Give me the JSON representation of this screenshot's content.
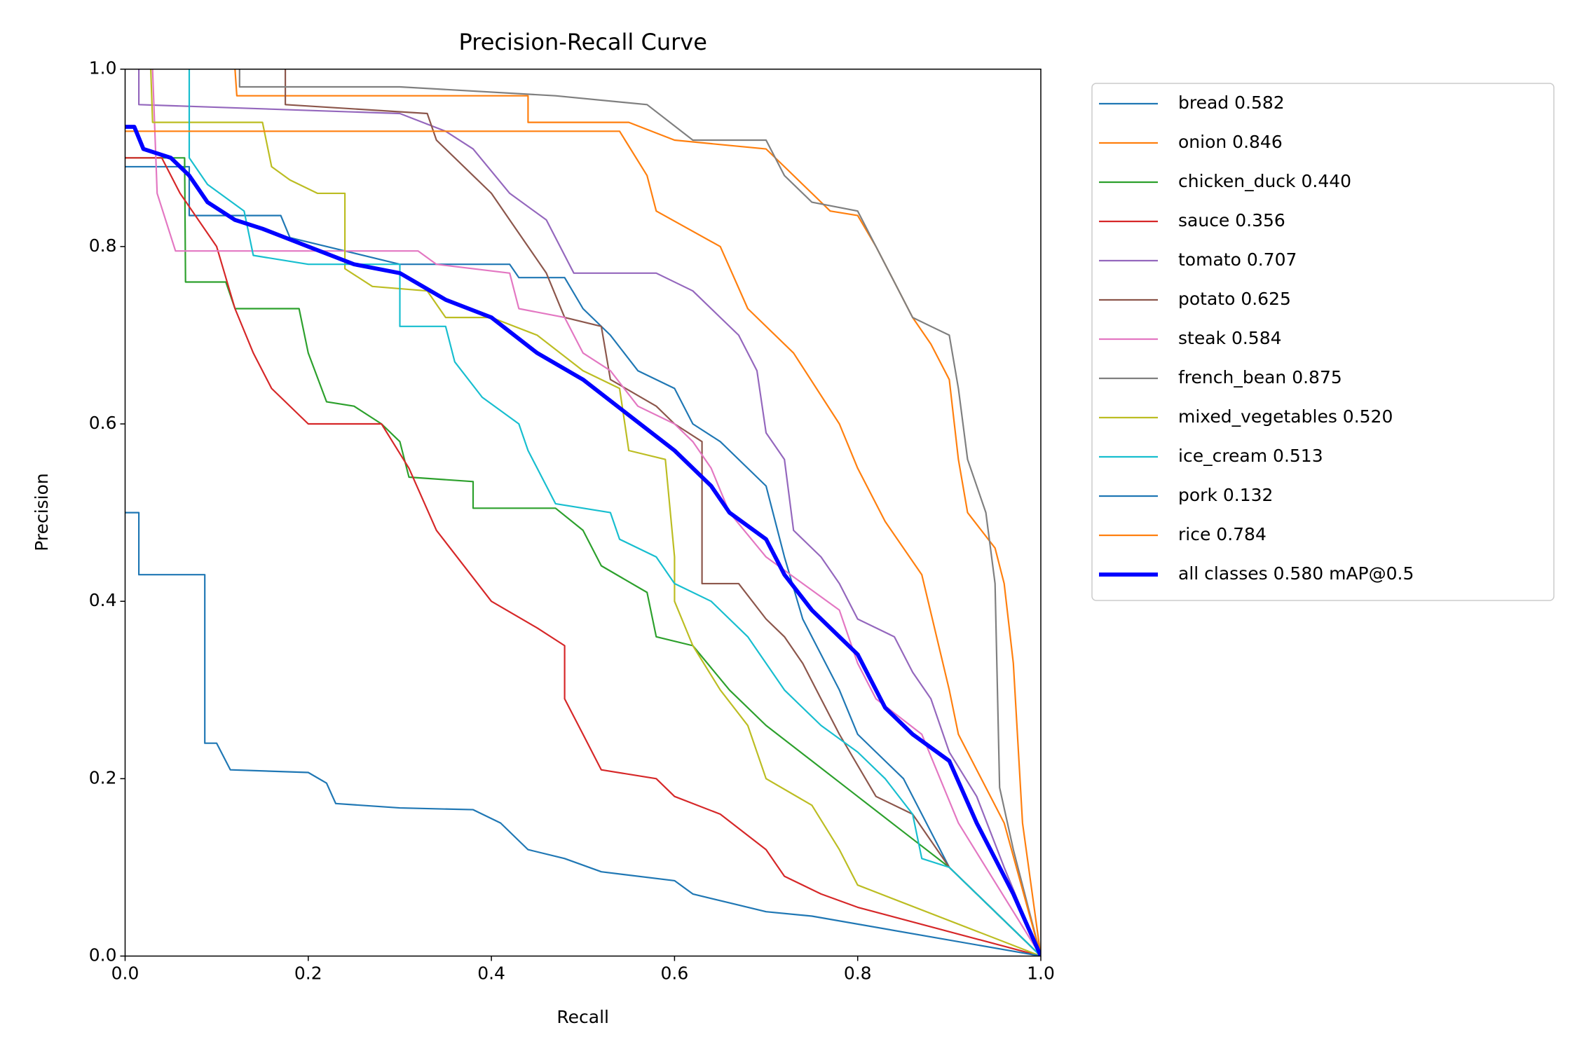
{
  "chart_data": {
    "type": "line",
    "title": "Precision-Recall Curve",
    "x_label": "Recall",
    "y_label": "Precision",
    "xlim": [
      0,
      1
    ],
    "ylim": [
      0,
      1
    ],
    "xticks": [
      {
        "value": 0,
        "label": "0.0"
      },
      {
        "value": 0.2,
        "label": "0.2"
      },
      {
        "value": 0.4,
        "label": "0.4"
      },
      {
        "value": 0.6,
        "label": "0.6"
      },
      {
        "value": 0.8,
        "label": "0.8"
      },
      {
        "value": 1,
        "label": "1.0"
      }
    ],
    "yticks": [
      {
        "value": 0,
        "label": "0.0"
      },
      {
        "value": 0.2,
        "label": "0.2"
      },
      {
        "value": 0.4,
        "label": "0.4"
      },
      {
        "value": 0.6,
        "label": "0.6"
      },
      {
        "value": 0.8,
        "label": "0.8"
      },
      {
        "value": 1,
        "label": "1.0"
      }
    ],
    "grid": false,
    "legend": "outside right",
    "series": [
      {
        "name": "bread 0.582",
        "color": "#1f77b4",
        "linewidth": 1.5,
        "x": [
          0,
          0.07,
          0.07,
          0.17,
          0.18,
          0.3,
          0.42,
          0.43,
          0.48,
          0.5,
          0.53,
          0.56,
          0.6,
          0.62,
          0.65,
          0.7,
          0.72,
          0.74,
          0.78,
          0.8,
          0.85,
          0.9,
          1.0
        ],
        "values": [
          0.89,
          0.89,
          0.835,
          0.835,
          0.81,
          0.78,
          0.78,
          0.765,
          0.765,
          0.73,
          0.7,
          0.66,
          0.64,
          0.6,
          0.58,
          0.53,
          0.45,
          0.38,
          0.3,
          0.25,
          0.2,
          0.1,
          0
        ]
      },
      {
        "name": "onion 0.846",
        "color": "#ff7f0e",
        "linewidth": 1.5,
        "x": [
          0.12,
          0.122,
          0.44,
          0.44,
          0.55,
          0.6,
          0.7,
          0.72,
          0.75,
          0.77,
          0.8,
          0.82,
          0.84,
          0.86,
          0.88,
          0.9,
          0.91,
          0.92,
          0.95,
          0.96,
          0.97,
          0.98,
          1.0
        ],
        "values": [
          1.0,
          0.97,
          0.97,
          0.94,
          0.94,
          0.92,
          0.91,
          0.89,
          0.86,
          0.84,
          0.835,
          0.8,
          0.76,
          0.72,
          0.69,
          0.65,
          0.56,
          0.5,
          0.46,
          0.42,
          0.33,
          0.15,
          0
        ]
      },
      {
        "name": "chicken_duck 0.440",
        "color": "#2ca02c",
        "linewidth": 1.5,
        "x": [
          0,
          0.065,
          0.066,
          0.11,
          0.12,
          0.19,
          0.2,
          0.22,
          0.25,
          0.28,
          0.3,
          0.31,
          0.38,
          0.38,
          0.47,
          0.5,
          0.52,
          0.57,
          0.58,
          0.62,
          0.66,
          0.7,
          0.75,
          0.8,
          0.85,
          0.9,
          1.0
        ],
        "values": [
          0.9,
          0.9,
          0.76,
          0.76,
          0.73,
          0.73,
          0.68,
          0.625,
          0.62,
          0.6,
          0.58,
          0.54,
          0.535,
          0.505,
          0.505,
          0.48,
          0.44,
          0.41,
          0.36,
          0.35,
          0.3,
          0.26,
          0.22,
          0.18,
          0.14,
          0.1,
          0
        ]
      },
      {
        "name": "sauce 0.356",
        "color": "#d62728",
        "linewidth": 1.5,
        "x": [
          0,
          0.04,
          0.06,
          0.1,
          0.12,
          0.14,
          0.16,
          0.2,
          0.28,
          0.31,
          0.34,
          0.4,
          0.45,
          0.48,
          0.48,
          0.5,
          0.52,
          0.58,
          0.6,
          0.65,
          0.7,
          0.72,
          0.76,
          0.8,
          1.0
        ],
        "values": [
          0.9,
          0.9,
          0.86,
          0.8,
          0.73,
          0.68,
          0.64,
          0.6,
          0.6,
          0.55,
          0.48,
          0.4,
          0.37,
          0.35,
          0.29,
          0.25,
          0.21,
          0.2,
          0.18,
          0.16,
          0.12,
          0.09,
          0.07,
          0.055,
          0
        ]
      },
      {
        "name": "tomato 0.707",
        "color": "#9467bd",
        "linewidth": 1.5,
        "x": [
          0.015,
          0.015,
          0.3,
          0.35,
          0.38,
          0.42,
          0.46,
          0.49,
          0.58,
          0.62,
          0.65,
          0.67,
          0.69,
          0.7,
          0.72,
          0.73,
          0.76,
          0.78,
          0.8,
          0.84,
          0.86,
          0.88,
          0.9,
          0.93,
          0.96,
          1.0
        ],
        "values": [
          1.0,
          0.96,
          0.95,
          0.93,
          0.91,
          0.86,
          0.83,
          0.77,
          0.77,
          0.75,
          0.72,
          0.7,
          0.66,
          0.59,
          0.56,
          0.48,
          0.45,
          0.42,
          0.38,
          0.36,
          0.32,
          0.29,
          0.23,
          0.18,
          0.1,
          0
        ]
      },
      {
        "name": "potato 0.625",
        "color": "#8c564b",
        "linewidth": 1.5,
        "x": [
          0.175,
          0.175,
          0.33,
          0.34,
          0.4,
          0.42,
          0.44,
          0.46,
          0.48,
          0.52,
          0.53,
          0.58,
          0.6,
          0.63,
          0.63,
          0.67,
          0.7,
          0.72,
          0.74,
          0.76,
          0.78,
          0.82,
          0.86,
          0.9,
          1.0
        ],
        "values": [
          1.0,
          0.96,
          0.95,
          0.92,
          0.86,
          0.83,
          0.8,
          0.77,
          0.72,
          0.71,
          0.65,
          0.62,
          0.6,
          0.58,
          0.42,
          0.42,
          0.38,
          0.36,
          0.33,
          0.29,
          0.25,
          0.18,
          0.16,
          0.1,
          0
        ]
      },
      {
        "name": "steak 0.584",
        "color": "#e377c2",
        "linewidth": 1.5,
        "x": [
          0.03,
          0.035,
          0.055,
          0.32,
          0.34,
          0.42,
          0.43,
          0.48,
          0.5,
          0.53,
          0.56,
          0.6,
          0.62,
          0.64,
          0.66,
          0.7,
          0.74,
          0.78,
          0.8,
          0.82,
          0.87,
          0.89,
          0.91,
          0.94,
          1.0
        ],
        "values": [
          1.0,
          0.86,
          0.795,
          0.795,
          0.78,
          0.77,
          0.73,
          0.72,
          0.68,
          0.66,
          0.62,
          0.6,
          0.58,
          0.55,
          0.5,
          0.45,
          0.42,
          0.39,
          0.33,
          0.29,
          0.25,
          0.2,
          0.15,
          0.1,
          0
        ]
      },
      {
        "name": "french_bean 0.875",
        "color": "#7f7f7f",
        "linewidth": 1.5,
        "x": [
          0.125,
          0.125,
          0.3,
          0.47,
          0.57,
          0.62,
          0.7,
          0.72,
          0.75,
          0.8,
          0.82,
          0.84,
          0.86,
          0.88,
          0.9,
          0.91,
          0.92,
          0.94,
          0.95,
          0.955,
          0.97,
          1.0
        ],
        "values": [
          1.0,
          0.98,
          0.98,
          0.97,
          0.96,
          0.92,
          0.92,
          0.88,
          0.85,
          0.84,
          0.8,
          0.76,
          0.72,
          0.71,
          0.7,
          0.64,
          0.56,
          0.5,
          0.42,
          0.19,
          0.12,
          0
        ]
      },
      {
        "name": "mixed_vegetables 0.520",
        "color": "#bcbd22",
        "linewidth": 1.5,
        "x": [
          0.028,
          0.03,
          0.15,
          0.16,
          0.18,
          0.21,
          0.24,
          0.24,
          0.27,
          0.33,
          0.35,
          0.4,
          0.45,
          0.5,
          0.54,
          0.55,
          0.59,
          0.6,
          0.6,
          0.62,
          0.65,
          0.68,
          0.7,
          0.75,
          0.78,
          0.8,
          1.0
        ],
        "values": [
          1.0,
          0.94,
          0.94,
          0.89,
          0.875,
          0.86,
          0.86,
          0.775,
          0.755,
          0.75,
          0.72,
          0.72,
          0.7,
          0.66,
          0.64,
          0.57,
          0.56,
          0.45,
          0.4,
          0.35,
          0.3,
          0.26,
          0.2,
          0.17,
          0.12,
          0.08,
          0
        ]
      },
      {
        "name": "ice_cream 0.513",
        "color": "#17becf",
        "linewidth": 1.5,
        "x": [
          0.07,
          0.07,
          0.09,
          0.13,
          0.14,
          0.2,
          0.3,
          0.3,
          0.35,
          0.36,
          0.39,
          0.43,
          0.44,
          0.47,
          0.53,
          0.54,
          0.58,
          0.6,
          0.64,
          0.68,
          0.72,
          0.76,
          0.8,
          0.83,
          0.86,
          0.87,
          0.9,
          1.0
        ],
        "values": [
          1.0,
          0.9,
          0.87,
          0.84,
          0.79,
          0.78,
          0.78,
          0.71,
          0.71,
          0.67,
          0.63,
          0.6,
          0.57,
          0.51,
          0.5,
          0.47,
          0.45,
          0.42,
          0.4,
          0.36,
          0.3,
          0.26,
          0.23,
          0.2,
          0.16,
          0.11,
          0.1,
          0
        ]
      },
      {
        "name": "pork 0.132",
        "color": "#1f77b4",
        "linewidth": 1.5,
        "x": [
          0,
          0.015,
          0.015,
          0.087,
          0.087,
          0.1,
          0.115,
          0.2,
          0.22,
          0.23,
          0.3,
          0.38,
          0.41,
          0.44,
          0.48,
          0.52,
          0.6,
          0.62,
          0.66,
          0.7,
          0.75,
          1.0
        ],
        "values": [
          0.5,
          0.5,
          0.43,
          0.43,
          0.24,
          0.24,
          0.21,
          0.207,
          0.195,
          0.172,
          0.167,
          0.165,
          0.15,
          0.12,
          0.11,
          0.095,
          0.085,
          0.07,
          0.06,
          0.05,
          0.045,
          0
        ]
      },
      {
        "name": "rice 0.784",
        "color": "#ff7f0e",
        "linewidth": 1.5,
        "x": [
          0,
          0.54,
          0.57,
          0.58,
          0.65,
          0.68,
          0.73,
          0.78,
          0.8,
          0.83,
          0.87,
          0.9,
          0.91,
          0.96,
          1.0
        ],
        "values": [
          0.93,
          0.93,
          0.88,
          0.84,
          0.8,
          0.73,
          0.68,
          0.6,
          0.55,
          0.49,
          0.43,
          0.3,
          0.25,
          0.15,
          0
        ]
      },
      {
        "name": "all classes 0.580 mAP@0.5",
        "color": "#0000ff",
        "linewidth": 4,
        "x": [
          0,
          0.01,
          0.02,
          0.05,
          0.07,
          0.09,
          0.12,
          0.15,
          0.2,
          0.25,
          0.3,
          0.35,
          0.4,
          0.45,
          0.5,
          0.55,
          0.6,
          0.64,
          0.66,
          0.7,
          0.72,
          0.75,
          0.8,
          0.83,
          0.86,
          0.9,
          0.93,
          0.95,
          0.97,
          1.0
        ],
        "values": [
          0.935,
          0.935,
          0.91,
          0.9,
          0.88,
          0.85,
          0.83,
          0.82,
          0.8,
          0.78,
          0.77,
          0.74,
          0.72,
          0.68,
          0.65,
          0.61,
          0.57,
          0.53,
          0.5,
          0.47,
          0.43,
          0.39,
          0.34,
          0.28,
          0.25,
          0.22,
          0.15,
          0.11,
          0.07,
          0
        ]
      }
    ]
  }
}
